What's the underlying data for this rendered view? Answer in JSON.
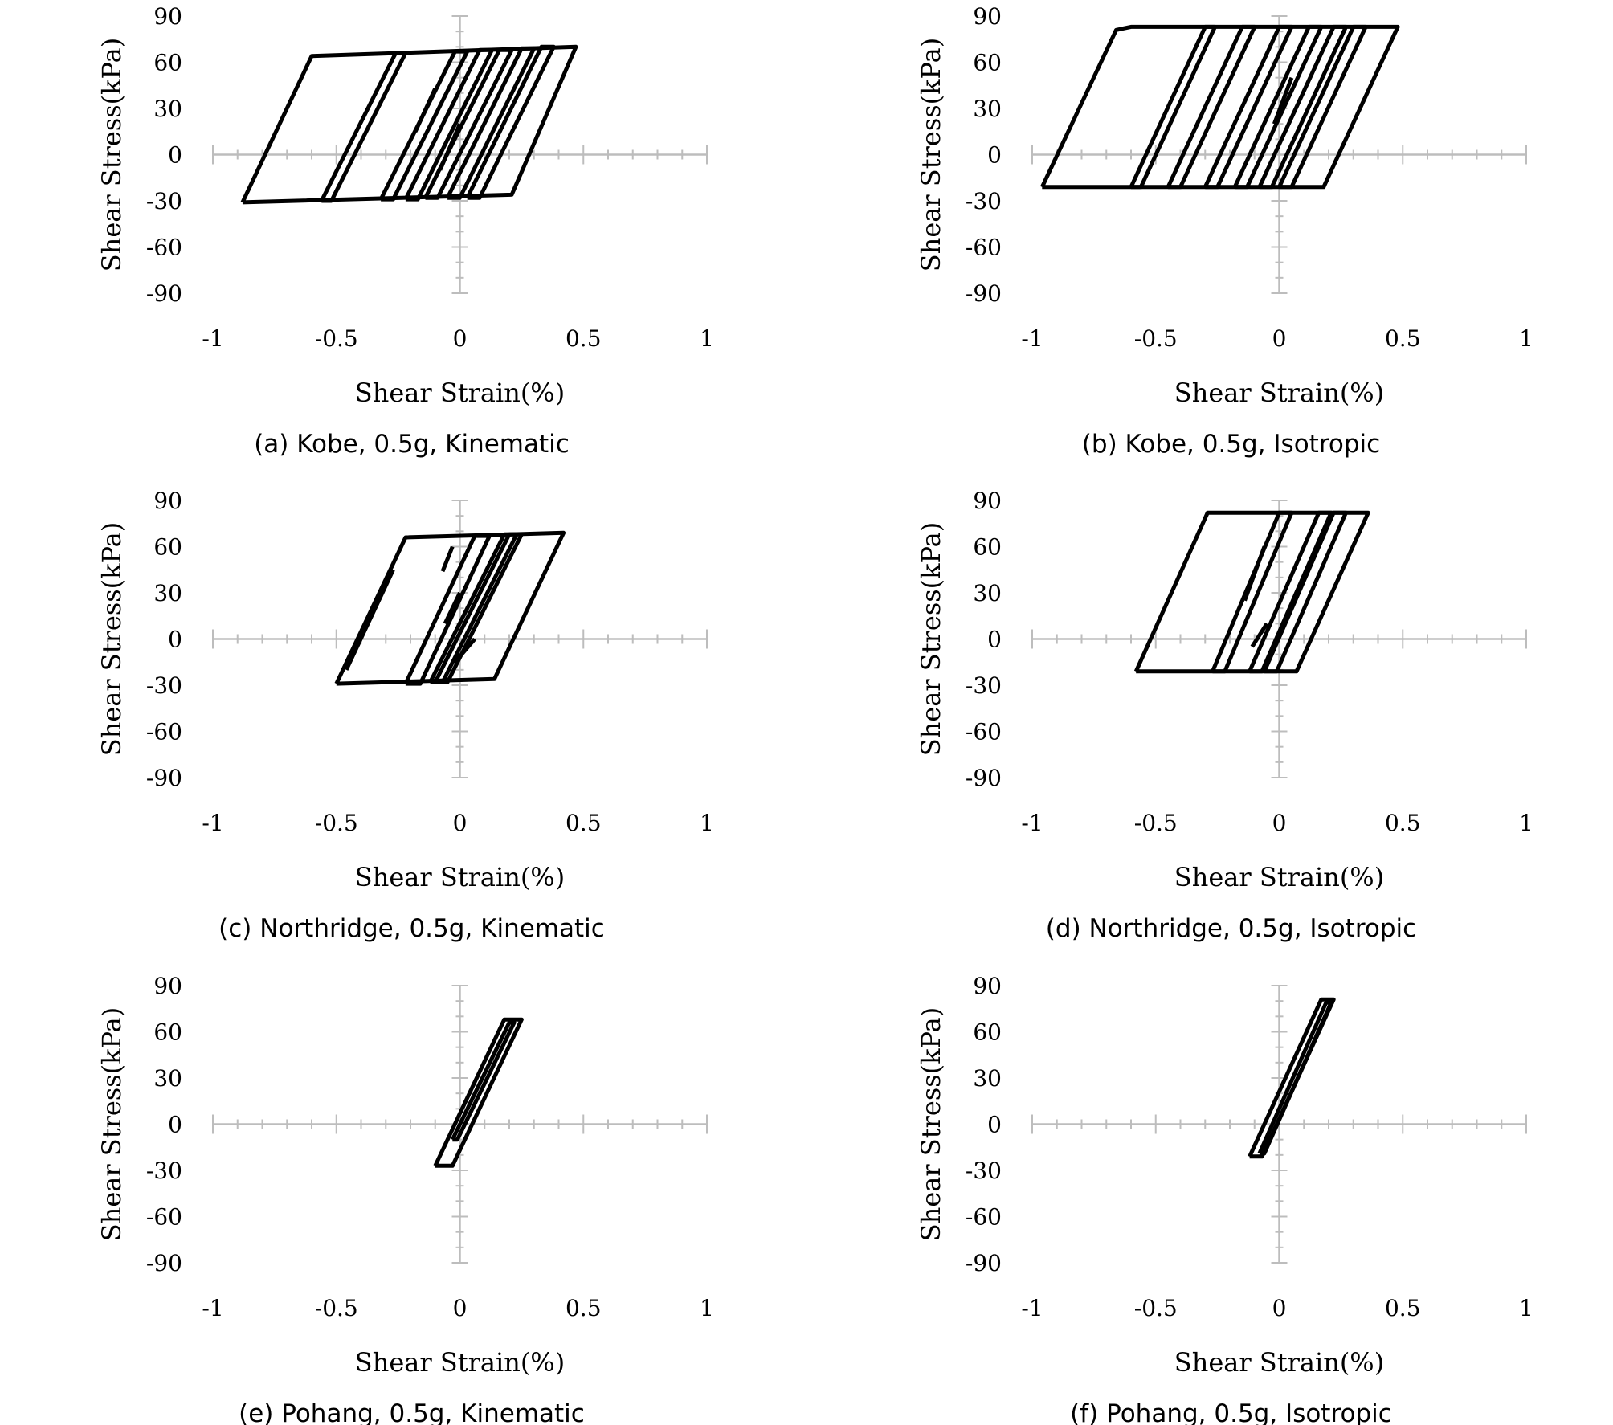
{
  "chart_data": [
    {
      "type": "line",
      "caption": "(a) Kobe, 0.5g, Kinematic",
      "xlabel": "Shear Strain(%)",
      "ylabel": "Shear Stress(kPa)",
      "xlim": [
        -1,
        1
      ],
      "ylim": [
        -90,
        90
      ],
      "xticks": [
        "-1",
        "-0.5",
        "0",
        "0.5",
        "1"
      ],
      "yticks": [
        "90",
        "60",
        "30",
        "0",
        "-30",
        "-60",
        "-90"
      ],
      "grid": false,
      "series": [
        {
          "x": [
            -0.88,
            -0.6,
            0.47,
            0.21,
            -0.88
          ],
          "y": [
            -31,
            64,
            70,
            -26,
            -31
          ]
        },
        {
          "x": [
            -0.56,
            -0.26,
            -0.22,
            -0.52,
            -0.56
          ],
          "y": [
            -30,
            66,
            66,
            -30,
            -30
          ]
        },
        {
          "x": [
            -0.32,
            -0.02,
            0.03,
            -0.27,
            -0.32
          ],
          "y": [
            -29,
            67,
            67,
            -29,
            -29
          ]
        },
        {
          "x": [
            -0.22,
            0.08,
            0.13,
            -0.17,
            -0.22
          ],
          "y": [
            -29,
            68,
            68,
            -29,
            -29
          ]
        },
        {
          "x": [
            -0.14,
            0.16,
            0.21,
            -0.09,
            -0.14
          ],
          "y": [
            -28,
            68,
            68,
            -28,
            -28
          ]
        },
        {
          "x": [
            -0.05,
            0.25,
            0.3,
            0.0,
            -0.05
          ],
          "y": [
            -28,
            69,
            69,
            -28,
            -28
          ]
        },
        {
          "x": [
            0.03,
            0.33,
            0.38,
            0.08,
            0.03
          ],
          "y": [
            -28,
            70,
            70,
            -28,
            -28
          ]
        },
        {
          "x": [
            -0.18,
            -0.1
          ],
          "y": [
            15,
            43
          ]
        },
        {
          "x": [
            -0.08,
            0.0
          ],
          "y": [
            -10,
            20
          ]
        }
      ]
    },
    {
      "type": "line",
      "caption": "(b) Kobe, 0.5g, Isotropic",
      "xlabel": "Shear Strain(%)",
      "ylabel": "Shear Stress(kPa)",
      "xlim": [
        -1,
        1
      ],
      "ylim": [
        -90,
        90
      ],
      "xticks": [
        "-1",
        "-0.5",
        "0",
        "0.5",
        "1"
      ],
      "yticks": [
        "90",
        "60",
        "30",
        "0",
        "-30",
        "-60",
        "-90"
      ],
      "grid": false,
      "series": [
        {
          "x": [
            -0.96,
            -0.66,
            -0.6,
            0.48,
            0.18,
            -0.96
          ],
          "y": [
            -21,
            81,
            83,
            83,
            -21,
            -21
          ]
        },
        {
          "x": [
            -0.6,
            -0.3,
            -0.26,
            -0.56,
            -0.6
          ],
          "y": [
            -21,
            83,
            83,
            -21,
            -21
          ]
        },
        {
          "x": [
            -0.45,
            -0.15,
            -0.1,
            -0.4,
            -0.45
          ],
          "y": [
            -21,
            83,
            83,
            -21,
            -21
          ]
        },
        {
          "x": [
            -0.3,
            0.0,
            0.05,
            -0.25,
            -0.3
          ],
          "y": [
            -21,
            83,
            83,
            -21,
            -21
          ]
        },
        {
          "x": [
            -0.18,
            0.12,
            0.17,
            -0.13,
            -0.18
          ],
          "y": [
            -21,
            83,
            83,
            -21,
            -21
          ]
        },
        {
          "x": [
            -0.08,
            0.22,
            0.27,
            -0.03,
            -0.08
          ],
          "y": [
            -21,
            83,
            83,
            -21,
            -21
          ]
        },
        {
          "x": [
            0.0,
            0.3,
            0.35,
            0.05,
            0.0
          ],
          "y": [
            -21,
            83,
            83,
            -21,
            -21
          ]
        },
        {
          "x": [
            -0.02,
            0.05
          ],
          "y": [
            20,
            50
          ]
        }
      ]
    },
    {
      "type": "line",
      "caption": "(c) Northridge, 0.5g, Kinematic",
      "xlabel": "Shear Strain(%)",
      "ylabel": "Shear Stress(kPa)",
      "xlim": [
        -1,
        1
      ],
      "ylim": [
        -90,
        90
      ],
      "xticks": [
        "-1",
        "-0.5",
        "0",
        "0.5",
        "1"
      ],
      "yticks": [
        "90",
        "60",
        "30",
        "0",
        "-30",
        "-60",
        "-90"
      ],
      "grid": false,
      "series": [
        {
          "x": [
            -0.5,
            -0.22,
            0.42,
            0.14,
            -0.5
          ],
          "y": [
            -29,
            66,
            69,
            -26,
            -29
          ]
        },
        {
          "x": [
            -0.22,
            0.06,
            0.12,
            -0.16,
            -0.22
          ],
          "y": [
            -29,
            67,
            67,
            -29,
            -29
          ]
        },
        {
          "x": [
            -0.12,
            0.18,
            0.23,
            -0.07,
            -0.12
          ],
          "y": [
            -28,
            68,
            68,
            -28,
            -28
          ]
        },
        {
          "x": [
            -0.1,
            0.2,
            0.25,
            -0.05,
            -0.1
          ],
          "y": [
            -28,
            68,
            68,
            -28,
            -28
          ]
        },
        {
          "x": [
            -0.46,
            -0.27
          ],
          "y": [
            -20,
            45
          ]
        },
        {
          "x": [
            -0.06,
            0.0
          ],
          "y": [
            10,
            30
          ]
        },
        {
          "x": [
            -0.07,
            -0.03
          ],
          "y": [
            44,
            60
          ]
        },
        {
          "x": [
            -0.02,
            0.06
          ],
          "y": [
            -15,
            0
          ]
        }
      ]
    },
    {
      "type": "line",
      "caption": "(d) Northridge, 0.5g, Isotropic",
      "xlabel": "Shear Strain(%)",
      "ylabel": "Shear Stress(kPa)",
      "xlim": [
        -1,
        1
      ],
      "ylim": [
        -90,
        90
      ],
      "xticks": [
        "-1",
        "-0.5",
        "0",
        "0.5",
        "1"
      ],
      "yticks": [
        "90",
        "60",
        "30",
        "0",
        "-30",
        "-60",
        "-90"
      ],
      "grid": false,
      "series": [
        {
          "x": [
            -0.58,
            -0.29,
            0.36,
            0.07,
            -0.58
          ],
          "y": [
            -21,
            82,
            82,
            -21,
            -21
          ]
        },
        {
          "x": [
            -0.27,
            0.0,
            0.05,
            -0.22,
            -0.27
          ],
          "y": [
            -21,
            82,
            82,
            -21,
            -21
          ]
        },
        {
          "x": [
            -0.12,
            0.16,
            0.21,
            -0.07,
            -0.12
          ],
          "y": [
            -21,
            82,
            82,
            -21,
            -21
          ]
        },
        {
          "x": [
            -0.06,
            0.22,
            0.27,
            -0.01,
            -0.06
          ],
          "y": [
            -21,
            82,
            82,
            -21,
            -21
          ]
        },
        {
          "x": [
            -0.14,
            -0.06
          ],
          "y": [
            25,
            60
          ]
        },
        {
          "x": [
            -0.11,
            -0.05
          ],
          "y": [
            -5,
            10
          ]
        }
      ]
    },
    {
      "type": "line",
      "caption": "(e) Pohang, 0.5g, Kinematic",
      "xlabel": "Shear Strain(%)",
      "ylabel": "Shear Stress(kPa)",
      "xlim": [
        -1,
        1
      ],
      "ylim": [
        -90,
        90
      ],
      "xticks": [
        "-1",
        "-0.5",
        "0",
        "0.5",
        "1"
      ],
      "yticks": [
        "90",
        "60",
        "30",
        "0",
        "-30",
        "-60",
        "-90"
      ],
      "grid": false,
      "series": [
        {
          "x": [
            -0.1,
            0.18,
            0.25,
            -0.03,
            -0.1
          ],
          "y": [
            -27,
            68,
            68,
            -27,
            -27
          ]
        },
        {
          "x": [
            -0.03,
            0.2,
            0.22,
            -0.01,
            -0.03
          ],
          "y": [
            -10,
            66,
            66,
            -10,
            -10
          ]
        }
      ]
    },
    {
      "type": "line",
      "caption": "(f) Pohang, 0.5g, Isotropic",
      "xlabel": "Shear Strain(%)",
      "ylabel": "Shear Stress(kPa)",
      "xlim": [
        -1,
        1
      ],
      "ylim": [
        -90,
        90
      ],
      "xticks": [
        "-1",
        "-0.5",
        "0",
        "0.5",
        "1"
      ],
      "yticks": [
        "90",
        "60",
        "30",
        "0",
        "-30",
        "-60",
        "-90"
      ],
      "grid": false,
      "series": [
        {
          "x": [
            -0.12,
            0.17,
            0.22,
            -0.07,
            -0.12
          ],
          "y": [
            -21,
            81,
            81,
            -21,
            -21
          ]
        },
        {
          "x": [
            -0.08,
            0.19,
            0.21,
            -0.06,
            -0.08
          ],
          "y": [
            -19,
            79,
            79,
            -19,
            -19
          ]
        }
      ]
    }
  ]
}
